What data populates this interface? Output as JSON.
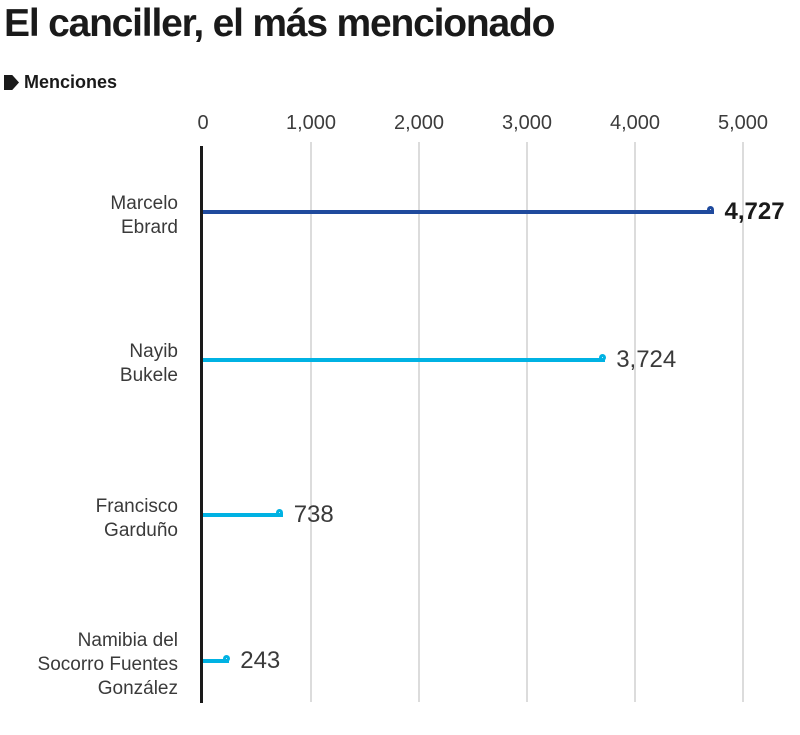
{
  "title": "El canciller, el más mencionado",
  "legend": {
    "label": "Menciones",
    "marker_color": "#1a1a1a"
  },
  "chart_data": {
    "type": "bar",
    "subtype": "lollipop-horizontal",
    "title": "El canciller, el más mencionado",
    "legend_label": "Menciones",
    "legend_position": "top-left",
    "categories": [
      "Marcelo Ebrard",
      "Nayib Bukele",
      "Francisco Garduño",
      "Namibia del Socorro Fuentes González"
    ],
    "category_lines": [
      [
        "Marcelo",
        "Ebrard"
      ],
      [
        "Nayib",
        "Bukele"
      ],
      [
        "Francisco",
        "Garduño"
      ],
      [
        "Namibia del",
        "Socorro Fuentes",
        "González"
      ]
    ],
    "values": [
      4727,
      3724,
      738,
      243
    ],
    "value_labels": [
      "4,727",
      "3,724",
      "738",
      "243"
    ],
    "bar_colors": [
      "#1f4a9d",
      "#00b2e3",
      "#00b2e3",
      "#00b2e3"
    ],
    "highlight_color": "#1f4a9d",
    "base_color": "#00b2e3",
    "axis_color": "#1a1a1a",
    "gridline_color": "#dcdcdc",
    "xlim": [
      0,
      5000
    ],
    "x_ticks": [
      "0",
      "1,000",
      "2,000",
      "3,000",
      "4,000",
      "5,000"
    ],
    "xlabel": "",
    "ylabel": "",
    "grid": true
  }
}
